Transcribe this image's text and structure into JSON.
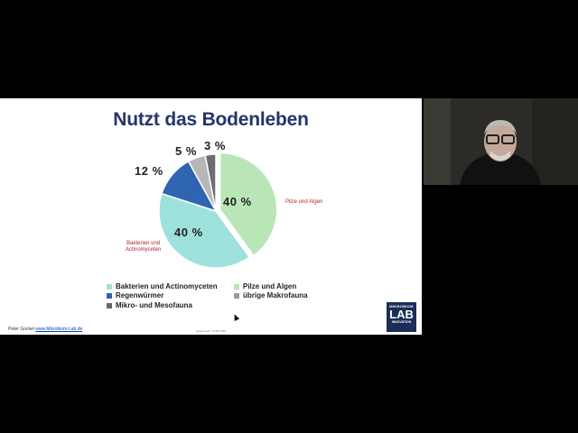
{
  "slide": {
    "title": "Nutzt das Bodenleben",
    "footer_name": "Peter Gockel",
    "footer_link": "www.Mikrobiom-Lab.de",
    "source": "Quelle nach: TOPP 1981",
    "callouts": {
      "right": "Pilze und Algen",
      "left_line1": "Bakterien und",
      "left_line2": "Actinomyceten"
    },
    "logo": {
      "top": "MIKROBIOM",
      "main": "LAB",
      "sub": "INNOVATION"
    }
  },
  "chart_data": {
    "type": "pie",
    "title": "",
    "slices": [
      {
        "label": "Pilze und Algen",
        "value": 40,
        "display": "40 %",
        "color": "#b9e6b7"
      },
      {
        "label": "Bakterien und Actinomyceten",
        "value": 40,
        "display": "40 %",
        "color": "#9ee0dc"
      },
      {
        "label": "Regenwürmer",
        "value": 12,
        "display": "12 %",
        "color": "#2f64b0"
      },
      {
        "label": "übrige Makrofauna",
        "value": 5,
        "display": "5 %",
        "color": "#b7b7b7"
      },
      {
        "label": "Mikro- und Mesofauna",
        "value": 3,
        "display": "3 %",
        "color": "#6d6d6d"
      }
    ],
    "legend": {
      "items": [
        {
          "label": "Bakterien und Actinomyceten",
          "color": "#9ee0dc"
        },
        {
          "label": "Pilze und Algen",
          "color": "#b9e6b7"
        },
        {
          "label": "Regenwürmer",
          "color": "#2f64b0"
        },
        {
          "label": "übrige Makrofauna",
          "color": "#9a9a9a"
        },
        {
          "label": "Mikro- und Mesofauna",
          "color": "#666666"
        }
      ]
    }
  }
}
